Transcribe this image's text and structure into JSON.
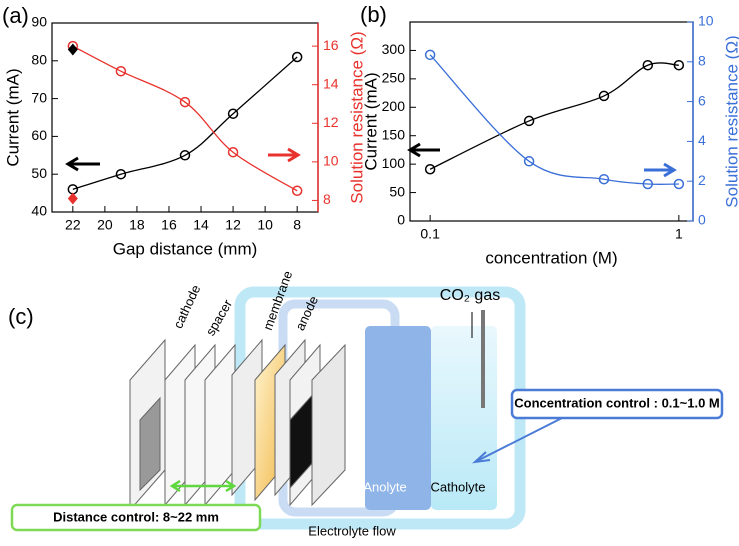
{
  "chart_data": [
    {
      "type": "scatter",
      "panel_label": "(a)",
      "x_label": "Gap distance (mm)",
      "y_label": "Current (mA)",
      "y2_label": "Solution resistance (Ω)",
      "xlim": [
        23.3,
        6.7
      ],
      "xticks": [
        22,
        20,
        18,
        16,
        14,
        12,
        10,
        8
      ],
      "ylim": [
        40,
        90
      ],
      "yticks": [
        40,
        50,
        60,
        70,
        80,
        90
      ],
      "y2lim": [
        7.4,
        17.2
      ],
      "y2ticks": [
        8,
        10,
        12,
        14,
        16
      ],
      "series": [
        {
          "color": "#000000",
          "marker": "circle",
          "fit": true,
          "x": [
            22,
            19,
            15,
            12,
            8
          ],
          "values": [
            46,
            50,
            55,
            66,
            81
          ]
        },
        {
          "color": "#e8322d",
          "marker": "circle",
          "fit": true,
          "axis": "y2",
          "x": [
            22,
            19,
            15,
            12,
            8
          ],
          "values": [
            16,
            14.7,
            13.1,
            10.5,
            8.5
          ]
        },
        {
          "color": "#000000",
          "marker": "diamond",
          "x": [
            22
          ],
          "values": [
            83
          ]
        },
        {
          "color": "#e8322d",
          "marker": "diamond",
          "axis": "y2",
          "x": [
            22
          ],
          "values": [
            8.1
          ]
        }
      ]
    },
    {
      "type": "scatter",
      "panel_label": "(b)",
      "x_label": "concentration (M)",
      "y_label": "Current (mA)",
      "y2_label": "Solution resistance (Ω)",
      "xscale": "log",
      "xlim": [
        0.083,
        1.14
      ],
      "xticks": [
        0.1,
        1
      ],
      "ylim": [
        0,
        350
      ],
      "yticks": [
        0,
        50,
        100,
        150,
        200,
        250,
        300
      ],
      "y2lim": [
        0,
        10
      ],
      "y2ticks": [
        0,
        2,
        4,
        6,
        8,
        10
      ],
      "series": [
        {
          "color": "#000000",
          "marker": "circle",
          "fit": true,
          "x": [
            0.1,
            0.25,
            0.5,
            0.75,
            1
          ],
          "values": [
            91,
            176,
            220,
            274,
            274
          ]
        },
        {
          "color": "#3a6fd8",
          "marker": "circle",
          "fit": true,
          "axis": "y2",
          "x": [
            0.1,
            0.25,
            0.5,
            0.75,
            1
          ],
          "values": [
            8.35,
            3,
            2.1,
            1.86,
            1.86
          ]
        }
      ]
    }
  ],
  "diagram": {
    "panel_label": "(c)",
    "gas": "CO₂ gas",
    "cathode": "cathode",
    "spacer": "spacer",
    "membrane": "membrane",
    "anode": "anode",
    "anolyte": "Anolyte",
    "catholyte": "Catholyte",
    "flow": "Electrolyte flow",
    "concentration_control": "Concentration control : 0.1~1.0 M",
    "distance_control": "Distance control: 8~22 mm"
  }
}
